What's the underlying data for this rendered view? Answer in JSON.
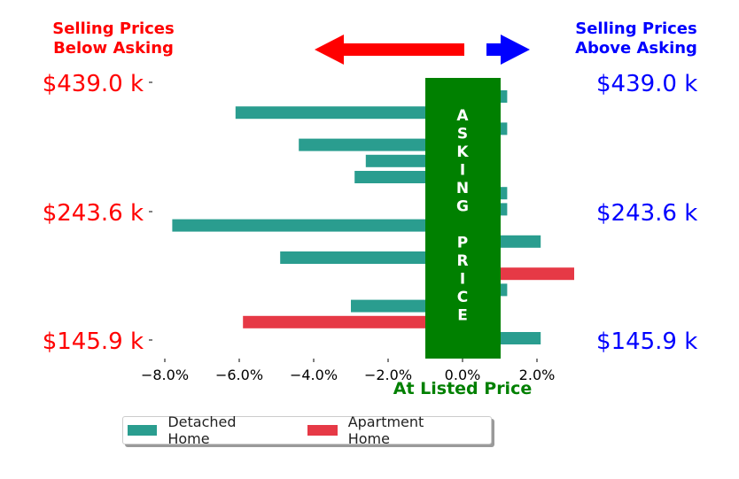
{
  "chart_data": {
    "type": "bar",
    "orientation": "horizontal",
    "title_left": [
      "Selling Prices",
      "Below Asking"
    ],
    "title_right": [
      "Selling Prices",
      "Above Asking"
    ],
    "xlabel": "At Listed Price",
    "center_band_label": "ASKING PRICE",
    "xlim": [
      -0.09,
      0.035
    ],
    "x_ticks": [
      -0.08,
      -0.06,
      -0.04,
      -0.02,
      0.0,
      0.02
    ],
    "x_tick_labels": [
      "−8.0%",
      "−6.0%",
      "−4.0%",
      "−2.0%",
      "0.0%",
      "2.0%"
    ],
    "y_tick_labels_left": [
      "$439.0 k",
      "$243.6 k",
      "$145.9 k"
    ],
    "y_tick_labels_right": [
      "$439.0 k",
      "$243.6 k",
      "$145.9 k"
    ],
    "bars": [
      {
        "price_rank": 1,
        "value": 0.012,
        "series": "Detached Home"
      },
      {
        "price_rank": 2,
        "value": -0.061,
        "series": "Detached Home"
      },
      {
        "price_rank": 3,
        "value": 0.012,
        "series": "Detached Home"
      },
      {
        "price_rank": 4,
        "value": -0.044,
        "series": "Detached Home"
      },
      {
        "price_rank": 5,
        "value": -0.026,
        "series": "Detached Home"
      },
      {
        "price_rank": 6,
        "value": -0.029,
        "series": "Detached Home"
      },
      {
        "price_rank": 7,
        "value": 0.012,
        "series": "Detached Home"
      },
      {
        "price_rank": 8,
        "value": 0.012,
        "series": "Detached Home"
      },
      {
        "price_rank": 9,
        "value": -0.078,
        "series": "Detached Home"
      },
      {
        "price_rank": 10,
        "value": 0.021,
        "series": "Detached Home"
      },
      {
        "price_rank": 11,
        "value": -0.049,
        "series": "Detached Home"
      },
      {
        "price_rank": 12,
        "value": 0.03,
        "series": "Apartment Home"
      },
      {
        "price_rank": 13,
        "value": 0.012,
        "series": "Detached Home"
      },
      {
        "price_rank": 14,
        "value": -0.03,
        "series": "Detached Home"
      },
      {
        "price_rank": 15,
        "value": -0.059,
        "series": "Apartment Home"
      },
      {
        "price_rank": 16,
        "value": 0.021,
        "series": "Detached Home"
      }
    ],
    "series": [
      {
        "name": "Detached Home",
        "color": "#2a9d8f"
      },
      {
        "name": "Apartment Home",
        "color": "#e63946"
      }
    ],
    "colors": {
      "below": "#ff0000",
      "above": "#0000ff",
      "band": "#008000",
      "band_text": "#ffffff"
    }
  }
}
